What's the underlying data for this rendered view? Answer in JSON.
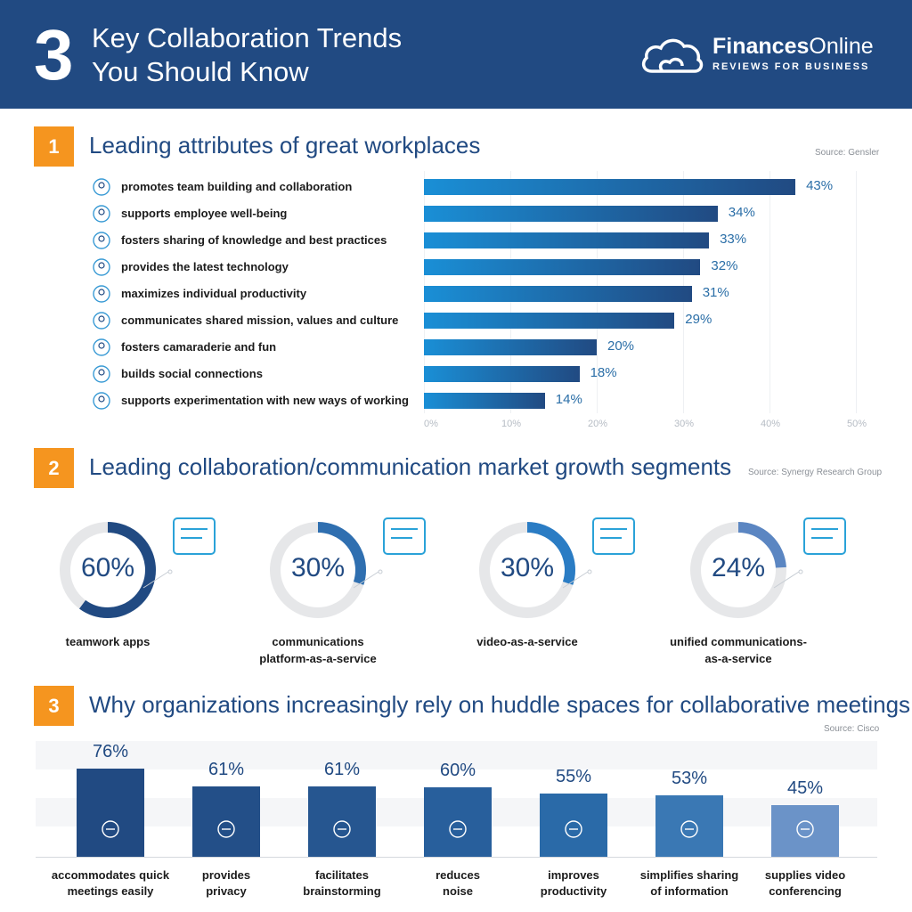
{
  "header": {
    "number": "3",
    "title_line1": "Key Collaboration Trends",
    "title_line2": "You Should Know",
    "brand_name_bold": "Finances",
    "brand_name_rest": "Online",
    "brand_tagline": "REVIEWS FOR BUSINESS"
  },
  "colors": {
    "header": "#214a82",
    "accent": "#f5951f",
    "bar_start": "#1a8fd6",
    "bar_end": "#214a82"
  },
  "section1": {
    "number": "1",
    "title": "Leading attributes of great workplaces",
    "source": "Source: Gensler",
    "axis_ticks": [
      "0%",
      "10%",
      "20%",
      "30%",
      "40%",
      "50%"
    ],
    "icons": [
      "team-icon",
      "smile-icon",
      "share-icon",
      "technology-icon",
      "productivity-icon",
      "mission-icon",
      "balloons-icon",
      "social-icon",
      "experiment-icon"
    ]
  },
  "section2": {
    "number": "2",
    "title": "Leading collaboration/communication market growth segments",
    "source": "Source: Synergy Research Group",
    "segments": [
      {
        "value": "60%",
        "pct": 60,
        "label_line1": "teamwork apps",
        "label_line2": "",
        "color": "#214a82",
        "icon": "teamwork-icon"
      },
      {
        "value": "30%",
        "pct": 30,
        "label_line1": "communications",
        "label_line2": "platform-as-a-service",
        "color": "#2f6fb0",
        "icon": "chat-icon"
      },
      {
        "value": "30%",
        "pct": 30,
        "label_line1": "video-as-a-service",
        "label_line2": "",
        "color": "#2a7cc4",
        "icon": "video-icon"
      },
      {
        "value": "24%",
        "pct": 24,
        "label_line1": "unified communications-",
        "label_line2": "as-a-service",
        "color": "#5b86c2",
        "icon": "messaging-icon"
      }
    ]
  },
  "section3": {
    "number": "3",
    "title": "Why organizations increasingly rely on huddle spaces for collaborative meetings",
    "source": "Source: Cisco",
    "icons": [
      "meeting-icon",
      "privacy-icon",
      "lightbulb-icon",
      "speaker-icon",
      "gauge-icon",
      "exchange-icon",
      "video-conference-icon"
    ],
    "label_lines": [
      [
        "accommodates quick",
        "meetings easily"
      ],
      [
        "provides",
        "privacy"
      ],
      [
        "facilitates",
        "brainstorming"
      ],
      [
        "reduces",
        "noise"
      ],
      [
        "improves",
        "productivity"
      ],
      [
        "simplifies sharing",
        "of information"
      ],
      [
        "supplies video",
        "conferencing"
      ]
    ]
  },
  "chart_data": [
    {
      "type": "bar",
      "orientation": "horizontal",
      "title": "Leading attributes of great workplaces",
      "categories": [
        "promotes team building and collaboration",
        "supports employee well-being",
        "fosters sharing of knowledge and best practices",
        "provides the latest technology",
        "maximizes individual productivity",
        "communicates shared mission, values and culture",
        "fosters camaraderie and fun",
        "builds social connections",
        "supports experimentation with new ways of working"
      ],
      "values": [
        43,
        34,
        33,
        32,
        31,
        29,
        20,
        18,
        14
      ],
      "value_labels": [
        "43%",
        "34%",
        "33%",
        "32%",
        "31%",
        "29%",
        "20%",
        "18%",
        "14%"
      ],
      "xlim": [
        0,
        50
      ],
      "unit": "%"
    },
    {
      "type": "pie",
      "title": "Leading collaboration/communication market growth segments",
      "categories": [
        "teamwork apps",
        "communications platform-as-a-service",
        "video-as-a-service",
        "unified communications-as-a-service"
      ],
      "values": [
        60,
        30,
        30,
        24
      ],
      "unit": "%"
    },
    {
      "type": "bar",
      "orientation": "vertical",
      "title": "Why organizations increasingly rely on huddle spaces for collaborative meetings",
      "categories": [
        "accommodates quick meetings easily",
        "provides privacy",
        "facilitates brainstorming",
        "reduces noise",
        "improves productivity",
        "simplifies sharing of information",
        "supplies video conferencing"
      ],
      "values": [
        76,
        61,
        61,
        60,
        55,
        53,
        45
      ],
      "value_labels": [
        "76%",
        "61%",
        "61%",
        "60%",
        "55%",
        "53%",
        "45%"
      ],
      "colors": [
        "#214a82",
        "#234f88",
        "#265690",
        "#285f9c",
        "#2a6aa8",
        "#3a78b4",
        "#6b93c8"
      ],
      "ylim": [
        0,
        100
      ],
      "unit": "%"
    }
  ]
}
